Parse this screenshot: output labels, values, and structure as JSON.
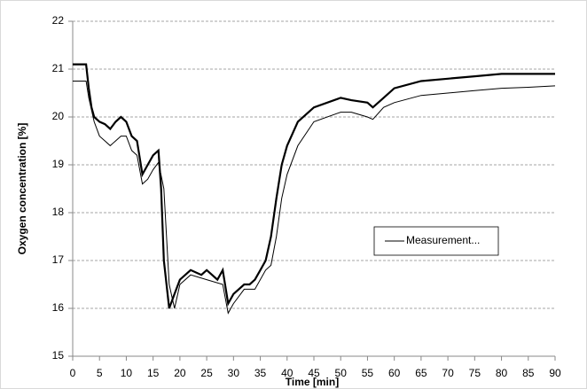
{
  "chart_data": {
    "type": "line",
    "x_label": "Time [min]",
    "y_label": "Oxygen concentration [%]",
    "xlim": [
      0,
      90
    ],
    "xticks": [
      0,
      5,
      10,
      15,
      20,
      25,
      30,
      35,
      40,
      45,
      50,
      55,
      60,
      65,
      70,
      75,
      80,
      85,
      90
    ],
    "ylim": [
      15,
      22
    ],
    "yticks": [
      15,
      16,
      17,
      18,
      19,
      20,
      21,
      22
    ],
    "grid": true,
    "legend": "right",
    "series": [
      {
        "color": "#000000",
        "width": 2.2,
        "x": [
          0,
          2.5,
          3,
          3.5,
          4,
          5,
          6,
          7,
          8,
          9,
          10,
          11,
          12,
          13,
          14,
          15,
          16,
          16.5,
          17,
          18,
          19,
          20,
          22,
          24,
          25,
          27,
          28,
          29,
          30,
          32,
          33,
          34,
          35,
          36,
          37,
          38,
          39,
          40,
          42,
          45,
          50,
          52,
          55,
          56,
          58,
          60,
          65,
          70,
          75,
          80,
          85,
          90
        ],
        "values": [
          21.1,
          21.1,
          20.6,
          20.2,
          20.0,
          19.9,
          19.85,
          19.75,
          19.9,
          20.0,
          19.9,
          19.6,
          19.5,
          18.8,
          19.0,
          19.2,
          19.3,
          18.5,
          17.0,
          16.0,
          16.3,
          16.6,
          16.8,
          16.7,
          16.8,
          16.6,
          16.8,
          16.1,
          16.3,
          16.5,
          16.5,
          16.6,
          16.8,
          17.0,
          17.5,
          18.3,
          19.0,
          19.4,
          19.9,
          20.2,
          20.4,
          20.35,
          20.3,
          20.2,
          20.4,
          20.6,
          20.75,
          20.8,
          20.85,
          20.9,
          20.9,
          20.9
        ]
      },
      {
        "name": "Measurement...",
        "color": "#000000",
        "width": 1,
        "x": [
          0,
          2.5,
          3,
          4,
          5,
          6,
          7,
          8,
          9,
          10,
          11,
          12,
          13,
          14,
          15,
          16,
          17,
          18,
          19,
          20,
          22,
          25,
          28,
          29,
          30,
          32,
          34,
          36,
          37,
          38,
          39,
          40,
          42,
          45,
          50,
          52,
          55,
          56,
          58,
          60,
          65,
          70,
          75,
          80,
          85,
          90
        ],
        "values": [
          20.75,
          20.75,
          20.4,
          19.9,
          19.6,
          19.5,
          19.4,
          19.5,
          19.6,
          19.6,
          19.3,
          19.2,
          18.6,
          18.7,
          18.9,
          19.05,
          18.5,
          16.5,
          16.0,
          16.5,
          16.7,
          16.6,
          16.5,
          15.9,
          16.1,
          16.4,
          16.4,
          16.8,
          16.9,
          17.5,
          18.3,
          18.8,
          19.4,
          19.9,
          20.1,
          20.1,
          20.0,
          19.95,
          20.2,
          20.3,
          20.45,
          20.5,
          20.55,
          20.6,
          20.62,
          20.65
        ]
      }
    ]
  }
}
